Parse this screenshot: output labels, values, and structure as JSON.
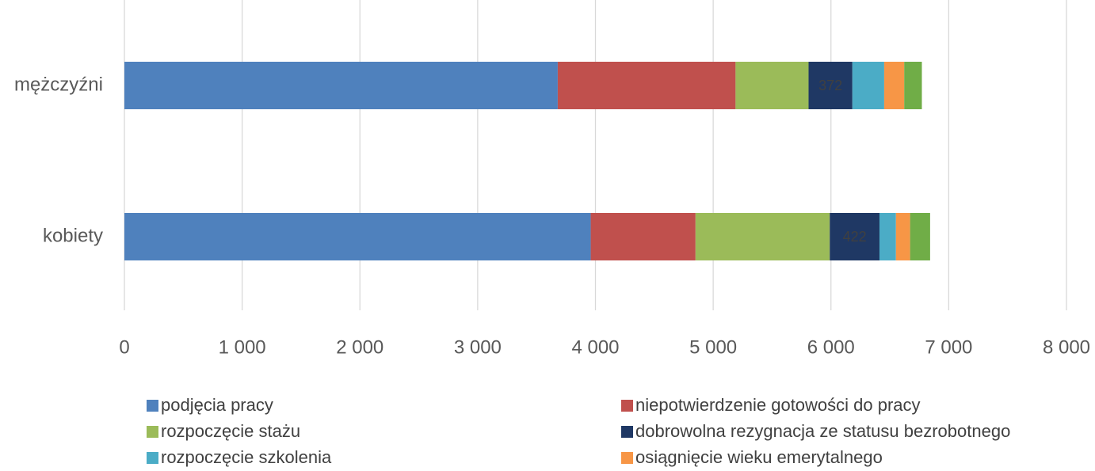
{
  "chart_data": {
    "type": "bar",
    "orientation": "horizontal",
    "stacked": true,
    "title": "",
    "xlabel": "",
    "ylabel": "",
    "xlim": [
      0,
      8000
    ],
    "x_ticks": [
      0,
      1000,
      2000,
      3000,
      4000,
      5000,
      6000,
      7000,
      8000
    ],
    "x_tick_labels": [
      "0",
      "1 000",
      "2 000",
      "3 000",
      "4 000",
      "5 000",
      "6 000",
      "7 000",
      "8 000"
    ],
    "grid": "vertical",
    "legend_position": "bottom",
    "categories": [
      "mężczyźni",
      "kobiety"
    ],
    "series": [
      {
        "name": "podjęcia pracy",
        "color": "#4F81BD",
        "values": [
          3680,
          3960
        ],
        "value_labels": [
          "",
          ""
        ]
      },
      {
        "name": "niepotwierdzenie gotowości do pracy",
        "color": "#C0504D",
        "values": [
          1510,
          890
        ],
        "value_labels": [
          "",
          ""
        ]
      },
      {
        "name": "rozpoczęcie stażu",
        "color": "#9BBB59",
        "values": [
          620,
          1140
        ],
        "value_labels": [
          "",
          ""
        ]
      },
      {
        "name": "dobrowolna rezygnacja ze statusu bezrobotnego",
        "color": "#1F3864",
        "values": [
          372,
          422
        ],
        "value_labels": [
          "372",
          "422"
        ]
      },
      {
        "name": "rozpoczęcie szkolenia",
        "color": "#4BACC6",
        "values": [
          270,
          140
        ],
        "value_labels": [
          "",
          ""
        ]
      },
      {
        "name": "osiągnięcie wieku emerytalnego",
        "color": "#F79646",
        "values": [
          170,
          120
        ],
        "value_labels": [
          "",
          ""
        ]
      },
      {
        "name": "",
        "color": "#70AD47",
        "values": [
          150,
          170
        ],
        "value_labels": [
          "",
          ""
        ]
      }
    ]
  }
}
